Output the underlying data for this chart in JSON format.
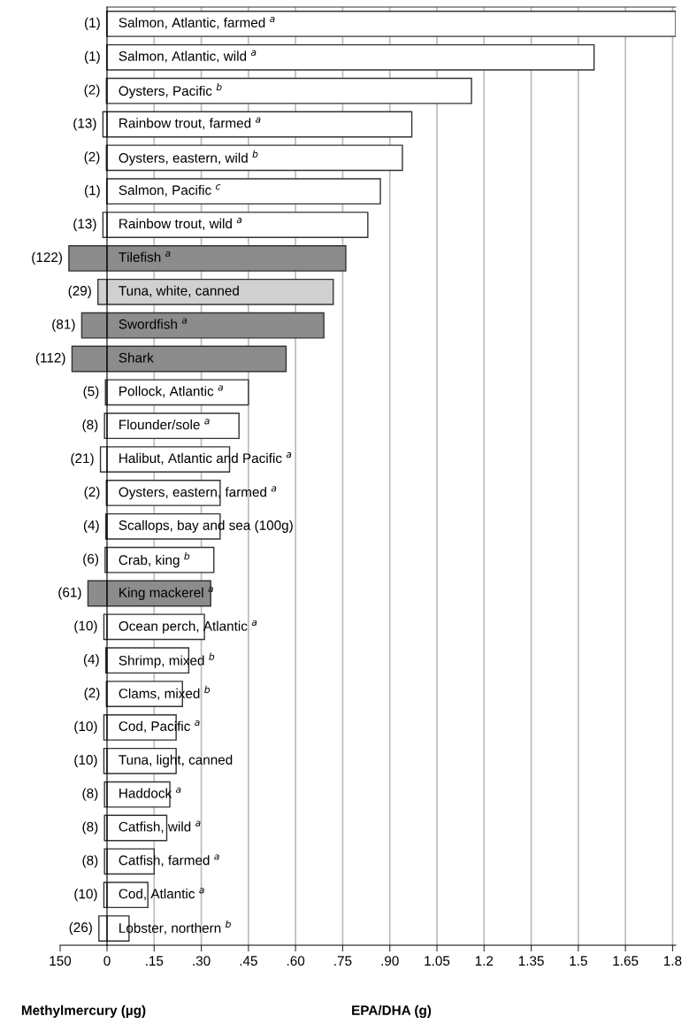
{
  "chart_data": [
    {
      "type": "bar",
      "orientation": "horizontal",
      "xlabel": "Methylmercury (µg)",
      "categories": [
        null,
        null,
        null,
        null,
        null,
        null,
        null,
        null,
        null,
        null,
        null,
        null,
        null,
        null,
        null,
        null,
        null,
        null,
        null,
        null,
        null,
        null,
        null,
        null,
        null,
        null,
        null,
        null
      ],
      "values": [
        1,
        1,
        2,
        13,
        2,
        1,
        13,
        122,
        29,
        81,
        112,
        5,
        8,
        21,
        2,
        4,
        6,
        61,
        10,
        4,
        2,
        10,
        10,
        8,
        8,
        8,
        10,
        26
      ],
      "value_labels": [
        "(1)",
        "(1)",
        "(2)",
        "(13)",
        "(2)",
        "(1)",
        "(13)",
        "(122)",
        "(29)",
        "(81)",
        "(112)",
        "(5)",
        "(8)",
        "(21)",
        "(2)",
        "(4)",
        "(6)",
        "(61)",
        "(10)",
        "(4)",
        "(2)",
        "(10)",
        "(10)",
        "(8)",
        "(8)",
        "(8)",
        "(10)",
        "(26)"
      ],
      "colors": [
        "#ffffff",
        "#ffffff",
        "#ffffff",
        "#ffffff",
        "#ffffff",
        "#ffffff",
        "#ffffff",
        "#8c8c8c",
        "#d0d0d0",
        "#8c8c8c",
        "#8c8c8c",
        "#ffffff",
        "#ffffff",
        "#ffffff",
        "#ffffff",
        "#ffffff",
        "#ffffff",
        "#8c8c8c",
        "#ffffff",
        "#ffffff",
        "#ffffff",
        "#ffffff",
        "#ffffff",
        "#ffffff",
        "#ffffff",
        "#ffffff",
        "#ffffff",
        "#ffffff"
      ],
      "xlim": [
        150,
        0
      ],
      "xticks": [
        150,
        0
      ]
    },
    {
      "type": "bar",
      "orientation": "horizontal",
      "xlabel": "EPA/DHA (g)",
      "grid": "x",
      "categories": [
        "Salmon, Atlantic, farmed $^{a}$",
        "Salmon, Atlantic, wild $^{a}$",
        "Oysters, Pacific $^{b}$",
        "Rainbow trout, farmed $^{a}$",
        "Oysters, eastern, wild $^{b}$",
        "Salmon, Pacific $^{c}$",
        "Rainbow trout, wild $^{a}$",
        "Tilefish $^{a}$",
        "Tuna, white, canned",
        "Swordfish $^{a}$",
        "Shark",
        "Pollock, Atlantic $^{a}$",
        "Flounder/sole $^{a}$",
        "Halibut, Atlantic and Pacific $^{a}$",
        "Oysters, eastern, farmed $^{a}$",
        "Scallops, bay and sea (100g)",
        "Crab, king $^{b}$",
        "King mackerel $^{a}$",
        "Ocean perch, Atlantic $^{a}$",
        "Shrimp, mixed $^{b}$",
        "Clams, mixed $^{b}$",
        "Cod, Pacific $^{a}$",
        "Tuna, light, canned",
        "Haddock $^{a}$",
        "Catfish, wild $^{a}$",
        "Catfish, farmed $^{a}$",
        "Cod, Atlantic $^{a}$",
        "Lobster, northern $^{b}$"
      ],
      "values": [
        1.81,
        1.55,
        1.16,
        0.97,
        0.94,
        0.87,
        0.83,
        0.76,
        0.72,
        0.69,
        0.57,
        0.45,
        0.42,
        0.39,
        0.36,
        0.36,
        0.34,
        0.33,
        0.31,
        0.26,
        0.24,
        0.22,
        0.22,
        0.2,
        0.19,
        0.15,
        0.13,
        0.07
      ],
      "colors": [
        "#ffffff",
        "#ffffff",
        "#ffffff",
        "#ffffff",
        "#ffffff",
        "#ffffff",
        "#ffffff",
        "#8c8c8c",
        "#d0d0d0",
        "#8c8c8c",
        "#8c8c8c",
        "#ffffff",
        "#ffffff",
        "#ffffff",
        "#ffffff",
        "#ffffff",
        "#ffffff",
        "#8c8c8c",
        "#ffffff",
        "#ffffff",
        "#ffffff",
        "#ffffff",
        "#ffffff",
        "#ffffff",
        "#ffffff",
        "#ffffff",
        "#ffffff",
        "#ffffff"
      ],
      "xlim": [
        0,
        1.81
      ],
      "xticks": [
        {
          "value": 0.15,
          "label": ".15"
        },
        {
          "value": 0.3,
          "label": ".30"
        },
        {
          "value": 0.45,
          "label": ".45"
        },
        {
          "value": 0.6,
          "label": ".60"
        },
        {
          "value": 0.75,
          "label": ".75"
        },
        {
          "value": 0.9,
          "label": ".90"
        },
        1.05,
        1.2,
        1.35,
        1.5,
        1.65,
        1.8
      ]
    }
  ]
}
